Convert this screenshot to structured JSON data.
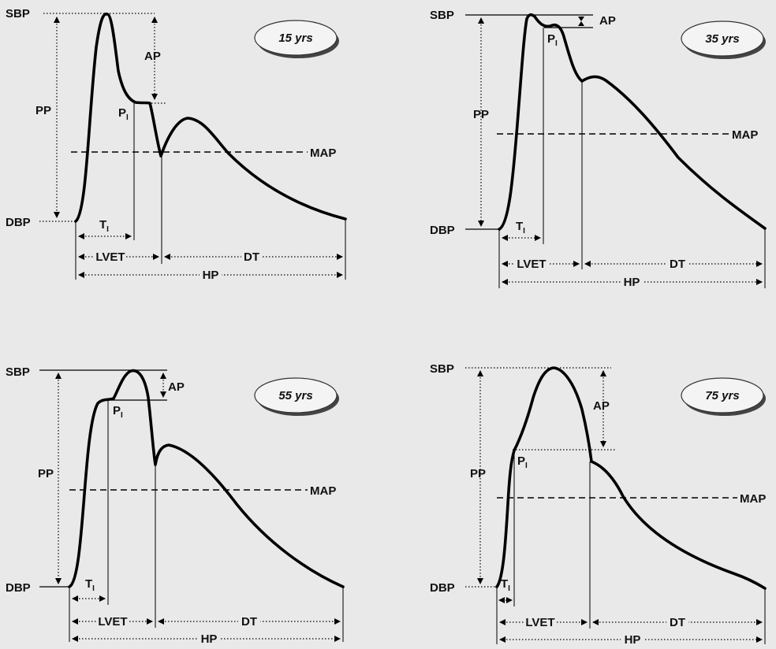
{
  "panels": [
    {
      "age": "15 yrs",
      "sbp": "SBP",
      "dbp": "DBP",
      "pp": "PP",
      "ap": "AP",
      "map": "MAP",
      "pi": "P",
      "pi_sub": "I",
      "ti": "T",
      "ti_sub": "I",
      "lvet": "LVET",
      "dt": "DT",
      "hp": "HP"
    },
    {
      "age": "35 yrs",
      "sbp": "SBP",
      "dbp": "DBP",
      "pp": "PP",
      "ap": "AP",
      "map": "MAP",
      "pi": "P",
      "pi_sub": "I",
      "ti": "T",
      "ti_sub": "I",
      "lvet": "LVET",
      "dt": "DT",
      "hp": "HP"
    },
    {
      "age": "55 yrs",
      "sbp": "SBP",
      "dbp": "DBP",
      "pp": "PP",
      "ap": "AP",
      "map": "MAP",
      "pi": "P",
      "pi_sub": "I",
      "ti": "T",
      "ti_sub": "I",
      "lvet": "LVET",
      "dt": "DT",
      "hp": "HP"
    },
    {
      "age": "75 yrs",
      "sbp": "SBP",
      "dbp": "DBP",
      "pp": "PP",
      "ap": "AP",
      "map": "MAP",
      "pi": "P",
      "pi_sub": "I",
      "ti": "T",
      "ti_sub": "I",
      "lvet": "LVET",
      "dt": "DT",
      "hp": "HP"
    }
  ]
}
